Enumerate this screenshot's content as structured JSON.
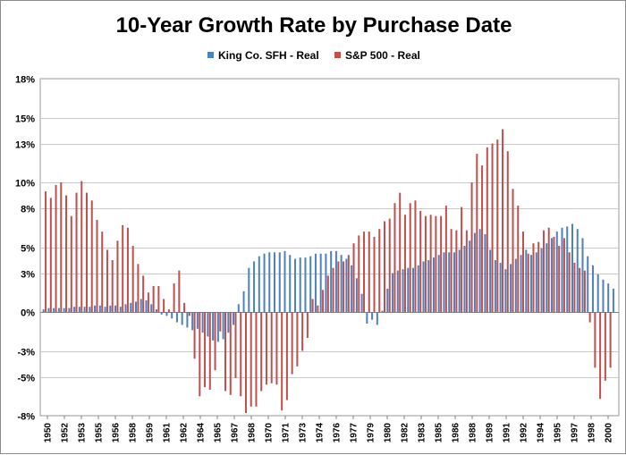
{
  "chart_data": {
    "type": "bar",
    "title": "10-Year Growth Rate by Purchase Date",
    "xlabel": "",
    "ylabel": "",
    "ylim": [
      -8,
      18
    ],
    "y_ticks": [
      -8,
      -5,
      -3,
      0,
      3,
      5,
      8,
      10,
      13,
      15,
      18
    ],
    "y_tick_labels": [
      "-8%",
      "-5%",
      "-3%",
      "0%",
      "3%",
      "5%",
      "8%",
      "10%",
      "13%",
      "15%",
      "18%"
    ],
    "grid": true,
    "legend_position": "top-center",
    "tick_labels": [
      "1950",
      "1952",
      "1953",
      "1955",
      "1956",
      "1958",
      "1959",
      "1961",
      "1962",
      "1964",
      "1965",
      "1967",
      "1968",
      "1970",
      "1971",
      "1973",
      "1974",
      "1976",
      "1977",
      "1979",
      "1980",
      "1982",
      "1983",
      "1985",
      "1986",
      "1988",
      "1989",
      "1991",
      "1992",
      "1994",
      "1995",
      "1997",
      "1998",
      "2000"
    ],
    "series": [
      {
        "name": "King Co. SFH - Real",
        "color": "#4f81bd",
        "values": [
          0.2,
          0.3,
          0.3,
          0.3,
          0.3,
          0.3,
          0.4,
          0.4,
          0.4,
          0.4,
          0.5,
          0.5,
          0.4,
          0.5,
          0.5,
          0.4,
          0.6,
          0.7,
          0.8,
          1.0,
          0.9,
          0.6,
          0.2,
          -0.2,
          -0.3,
          -0.5,
          -0.8,
          -1.0,
          -1.2,
          -1.4,
          -1.3,
          -1.6,
          -1.9,
          -2.2,
          -2.3,
          -2.1,
          -1.6,
          -1.0,
          0.6,
          1.6,
          3.4,
          3.9,
          4.3,
          4.5,
          4.6,
          4.6,
          4.6,
          4.7,
          4.4,
          4.1,
          4.2,
          4.2,
          4.3,
          4.5,
          4.5,
          4.5,
          4.7,
          4.7,
          4.4,
          4.1,
          3.6,
          2.6,
          1.4,
          -0.9,
          -0.6,
          -1.0,
          0.1,
          1.8,
          3.0,
          3.2,
          3.3,
          3.4,
          3.4,
          3.6,
          3.9,
          4.0,
          4.2,
          4.4,
          4.6,
          4.6,
          4.6,
          4.8,
          5.1,
          5.5,
          6.1,
          6.4,
          6.0,
          4.8,
          4.0,
          3.8,
          3.3,
          3.7,
          4.1,
          4.4,
          4.8,
          4.4,
          4.6,
          4.9,
          5.3,
          5.7,
          6.2,
          6.5,
          6.6,
          6.8,
          6.4,
          5.7,
          4.3,
          3.6,
          2.9,
          2.5,
          2.2,
          1.8
        ]
      },
      {
        "name": "S&P 500 - Real",
        "color": "#c0504d",
        "values": [
          9.3,
          8.8,
          9.8,
          10.0,
          9.0,
          7.4,
          9.2,
          10.1,
          9.2,
          8.6,
          7.1,
          6.2,
          4.8,
          4.0,
          5.5,
          6.7,
          6.5,
          5.1,
          3.7,
          2.8,
          1.5,
          2.0,
          2.0,
          1.0,
          0.2,
          2.2,
          3.2,
          0.7,
          -0.3,
          -3.6,
          -6.5,
          -5.8,
          -6.0,
          -4.5,
          -1.5,
          -6.1,
          -6.4,
          -5.1,
          -6.5,
          -7.8,
          -7.3,
          -7.3,
          -6.1,
          -5.6,
          -5.5,
          -5.6,
          -7.6,
          -6.8,
          -4.8,
          -4.2,
          -3.0,
          -2.0,
          1.0,
          0.5,
          1.7,
          2.8,
          3.4,
          3.9,
          3.9,
          4.4,
          5.3,
          5.9,
          6.2,
          6.2,
          5.8,
          6.4,
          7.0,
          7.2,
          8.4,
          9.2,
          7.5,
          8.4,
          8.6,
          7.8,
          7.4,
          7.5,
          7.4,
          7.4,
          8.2,
          6.4,
          6.3,
          8.1,
          6.3,
          10.0,
          12.2,
          11.3,
          12.7,
          13.0,
          13.3,
          14.1,
          12.4,
          9.5,
          8.2,
          6.2,
          4.5,
          5.3,
          5.4,
          6.3,
          6.5,
          5.8,
          5.1,
          5.7,
          4.6,
          3.8,
          3.4,
          3.2,
          -0.8,
          -4.3,
          -6.7,
          -5.3,
          -4.3
        ]
      }
    ]
  }
}
